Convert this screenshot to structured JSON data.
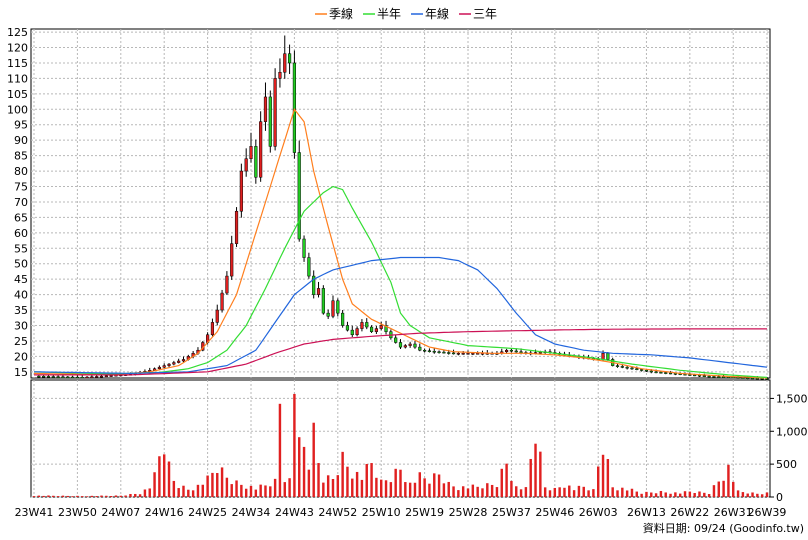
{
  "chart_data": {
    "type": "candlestick",
    "legend": [
      {
        "name": "季線",
        "color": "#ff7f1e"
      },
      {
        "name": "半年",
        "color": "#33dd33"
      },
      {
        "name": "年線",
        "color": "#2266dd"
      },
      {
        "name": "三年",
        "color": "#cc1155"
      }
    ],
    "colors": {
      "up": "#e02020",
      "down": "#22cc22",
      "volume": "#e02020",
      "grid": "#b8b8b8",
      "frame": "#000000"
    },
    "price_axis": {
      "min": 13,
      "max": 126,
      "ticks": [
        15,
        20,
        25,
        30,
        35,
        40,
        45,
        50,
        55,
        60,
        65,
        70,
        75,
        80,
        85,
        90,
        95,
        100,
        105,
        110,
        115,
        120,
        125
      ]
    },
    "volume_axis": {
      "max": 1780,
      "ticks": [
        0,
        500,
        1000,
        1500
      ],
      "tick_labels": [
        "0",
        "500",
        "1,000",
        "1,500"
      ]
    },
    "x_axis": {
      "n_weeks": 152,
      "tick_labels": [
        "23W41",
        "23W50",
        "24W07",
        "24W16",
        "24W25",
        "24W34",
        "24W43",
        "24W52",
        "25W10",
        "25W19",
        "25W28",
        "25W37",
        "25W46",
        "26W03",
        "26W13",
        "26W22",
        "26W31",
        "26W39"
      ],
      "tick_weeks": [
        0,
        9,
        18,
        27,
        36,
        45,
        54,
        63,
        72,
        81,
        90,
        99,
        108,
        117,
        127,
        136,
        145,
        152
      ]
    },
    "price_anchors": [
      [
        0,
        13.6
      ],
      [
        10,
        13.2
      ],
      [
        20,
        14.2
      ],
      [
        24,
        15.5
      ],
      [
        27,
        17
      ],
      [
        31,
        19
      ],
      [
        34,
        22
      ],
      [
        36,
        27
      ],
      [
        38,
        35
      ],
      [
        40,
        46
      ],
      [
        42,
        67
      ],
      [
        43,
        80
      ],
      [
        45,
        88
      ],
      [
        46,
        78
      ],
      [
        47,
        96
      ],
      [
        48,
        104
      ],
      [
        49,
        88
      ],
      [
        50,
        110
      ],
      [
        51,
        112
      ],
      [
        52,
        118
      ],
      [
        53,
        115
      ],
      [
        54,
        86
      ],
      [
        55,
        58
      ],
      [
        56,
        52
      ],
      [
        57,
        46
      ],
      [
        58,
        40
      ],
      [
        59,
        42
      ],
      [
        60,
        34
      ],
      [
        61,
        33
      ],
      [
        62,
        38
      ],
      [
        63,
        34
      ],
      [
        64,
        30
      ],
      [
        66,
        27
      ],
      [
        68,
        31
      ],
      [
        70,
        28
      ],
      [
        72,
        30
      ],
      [
        74,
        26
      ],
      [
        76,
        23
      ],
      [
        78,
        24
      ],
      [
        80,
        22
      ],
      [
        83,
        21.5
      ],
      [
        87,
        21
      ],
      [
        92,
        21
      ],
      [
        96,
        21
      ],
      [
        98,
        22
      ],
      [
        102,
        21
      ],
      [
        106,
        21.5
      ],
      [
        110,
        20.5
      ],
      [
        114,
        19.5
      ],
      [
        117,
        19
      ],
      [
        118,
        21
      ],
      [
        120,
        17
      ],
      [
        124,
        16
      ],
      [
        128,
        15
      ],
      [
        132,
        14.5
      ],
      [
        136,
        14
      ],
      [
        140,
        13.5
      ],
      [
        145,
        13.2
      ],
      [
        152,
        12.8
      ]
    ],
    "ma_series": {
      "季線": [
        [
          0,
          14.5
        ],
        [
          16,
          14
        ],
        [
          24,
          15
        ],
        [
          30,
          17
        ],
        [
          34,
          21
        ],
        [
          38,
          28
        ],
        [
          42,
          40
        ],
        [
          46,
          60
        ],
        [
          50,
          80
        ],
        [
          53,
          95
        ],
        [
          54,
          100
        ],
        [
          56,
          96
        ],
        [
          58,
          80
        ],
        [
          61,
          62
        ],
        [
          64,
          45
        ],
        [
          66,
          37
        ],
        [
          70,
          32
        ],
        [
          74,
          29
        ],
        [
          78,
          26
        ],
        [
          82,
          23
        ],
        [
          87,
          21.5
        ],
        [
          95,
          21
        ],
        [
          102,
          21
        ],
        [
          108,
          20.5
        ],
        [
          114,
          19.5
        ],
        [
          120,
          18
        ],
        [
          126,
          16
        ],
        [
          134,
          14.5
        ],
        [
          144,
          13.5
        ],
        [
          152,
          13
        ]
      ],
      "半年": [
        [
          0,
          15
        ],
        [
          16,
          14.3
        ],
        [
          26,
          14.8
        ],
        [
          32,
          16
        ],
        [
          36,
          18
        ],
        [
          40,
          22
        ],
        [
          44,
          30
        ],
        [
          48,
          42
        ],
        [
          52,
          55
        ],
        [
          56,
          67
        ],
        [
          60,
          73
        ],
        [
          62,
          75
        ],
        [
          64,
          74
        ],
        [
          66,
          68
        ],
        [
          70,
          57
        ],
        [
          74,
          44
        ],
        [
          76,
          34
        ],
        [
          78,
          30
        ],
        [
          82,
          26
        ],
        [
          90,
          23.5
        ],
        [
          100,
          22.5
        ],
        [
          108,
          21
        ],
        [
          116,
          19.5
        ],
        [
          124,
          17.5
        ],
        [
          134,
          15.5
        ],
        [
          144,
          14
        ],
        [
          152,
          13.2
        ]
      ],
      "年線": [
        [
          0,
          15
        ],
        [
          20,
          14.5
        ],
        [
          32,
          15
        ],
        [
          40,
          17
        ],
        [
          46,
          22
        ],
        [
          50,
          31
        ],
        [
          54,
          40
        ],
        [
          58,
          45
        ],
        [
          62,
          48
        ],
        [
          66,
          49.5
        ],
        [
          70,
          51
        ],
        [
          76,
          52
        ],
        [
          84,
          52
        ],
        [
          88,
          51
        ],
        [
          92,
          48
        ],
        [
          96,
          42
        ],
        [
          100,
          34
        ],
        [
          104,
          27
        ],
        [
          108,
          24
        ],
        [
          114,
          22
        ],
        [
          120,
          21
        ],
        [
          128,
          20.5
        ],
        [
          136,
          19.5
        ],
        [
          144,
          18
        ],
        [
          152,
          16.5
        ]
      ],
      "三年": [
        [
          0,
          14
        ],
        [
          20,
          14
        ],
        [
          36,
          15
        ],
        [
          44,
          17.5
        ],
        [
          50,
          21
        ],
        [
          56,
          24
        ],
        [
          62,
          25.5
        ],
        [
          70,
          26.5
        ],
        [
          80,
          27.5
        ],
        [
          90,
          28
        ],
        [
          100,
          28.3
        ],
        [
          110,
          28.6
        ],
        [
          120,
          28.8
        ],
        [
          135,
          28.9
        ],
        [
          152,
          28.9
        ]
      ]
    },
    "volume_anchors": [
      [
        0,
        20
      ],
      [
        10,
        15
      ],
      [
        18,
        20
      ],
      [
        22,
        60
      ],
      [
        24,
        150
      ],
      [
        25,
        300
      ],
      [
        26,
        600
      ],
      [
        27,
        800
      ],
      [
        28,
        450
      ],
      [
        29,
        250
      ],
      [
        30,
        180
      ],
      [
        32,
        120
      ],
      [
        34,
        170
      ],
      [
        36,
        260
      ],
      [
        38,
        450
      ],
      [
        40,
        300
      ],
      [
        42,
        220
      ],
      [
        44,
        180
      ],
      [
        46,
        130
      ],
      [
        48,
        170
      ],
      [
        50,
        230
      ],
      [
        51,
        1450
      ],
      [
        52,
        300
      ],
      [
        53,
        250
      ],
      [
        54,
        1700
      ],
      [
        55,
        1300
      ],
      [
        56,
        700
      ],
      [
        57,
        480
      ],
      [
        58,
        900
      ],
      [
        59,
        500
      ],
      [
        60,
        270
      ],
      [
        62,
        280
      ],
      [
        64,
        600
      ],
      [
        66,
        400
      ],
      [
        68,
        300
      ],
      [
        70,
        500
      ],
      [
        72,
        220
      ],
      [
        74,
        300
      ],
      [
        76,
        450
      ],
      [
        78,
        200
      ],
      [
        80,
        300
      ],
      [
        82,
        250
      ],
      [
        84,
        350
      ],
      [
        86,
        200
      ],
      [
        88,
        150
      ],
      [
        92,
        150
      ],
      [
        96,
        200
      ],
      [
        98,
        550
      ],
      [
        100,
        150
      ],
      [
        102,
        120
      ],
      [
        104,
        1000
      ],
      [
        106,
        150
      ],
      [
        108,
        120
      ],
      [
        110,
        200
      ],
      [
        112,
        120
      ],
      [
        114,
        150
      ],
      [
        116,
        100
      ],
      [
        118,
        850
      ],
      [
        120,
        160
      ],
      [
        124,
        100
      ],
      [
        126,
        60
      ],
      [
        130,
        80
      ],
      [
        134,
        60
      ],
      [
        136,
        80
      ],
      [
        140,
        60
      ],
      [
        144,
        450
      ],
      [
        146,
        80
      ],
      [
        150,
        50
      ],
      [
        152,
        60
      ]
    ],
    "source_label": "資料日期: 09/24  (Goodinfo.tw)"
  }
}
